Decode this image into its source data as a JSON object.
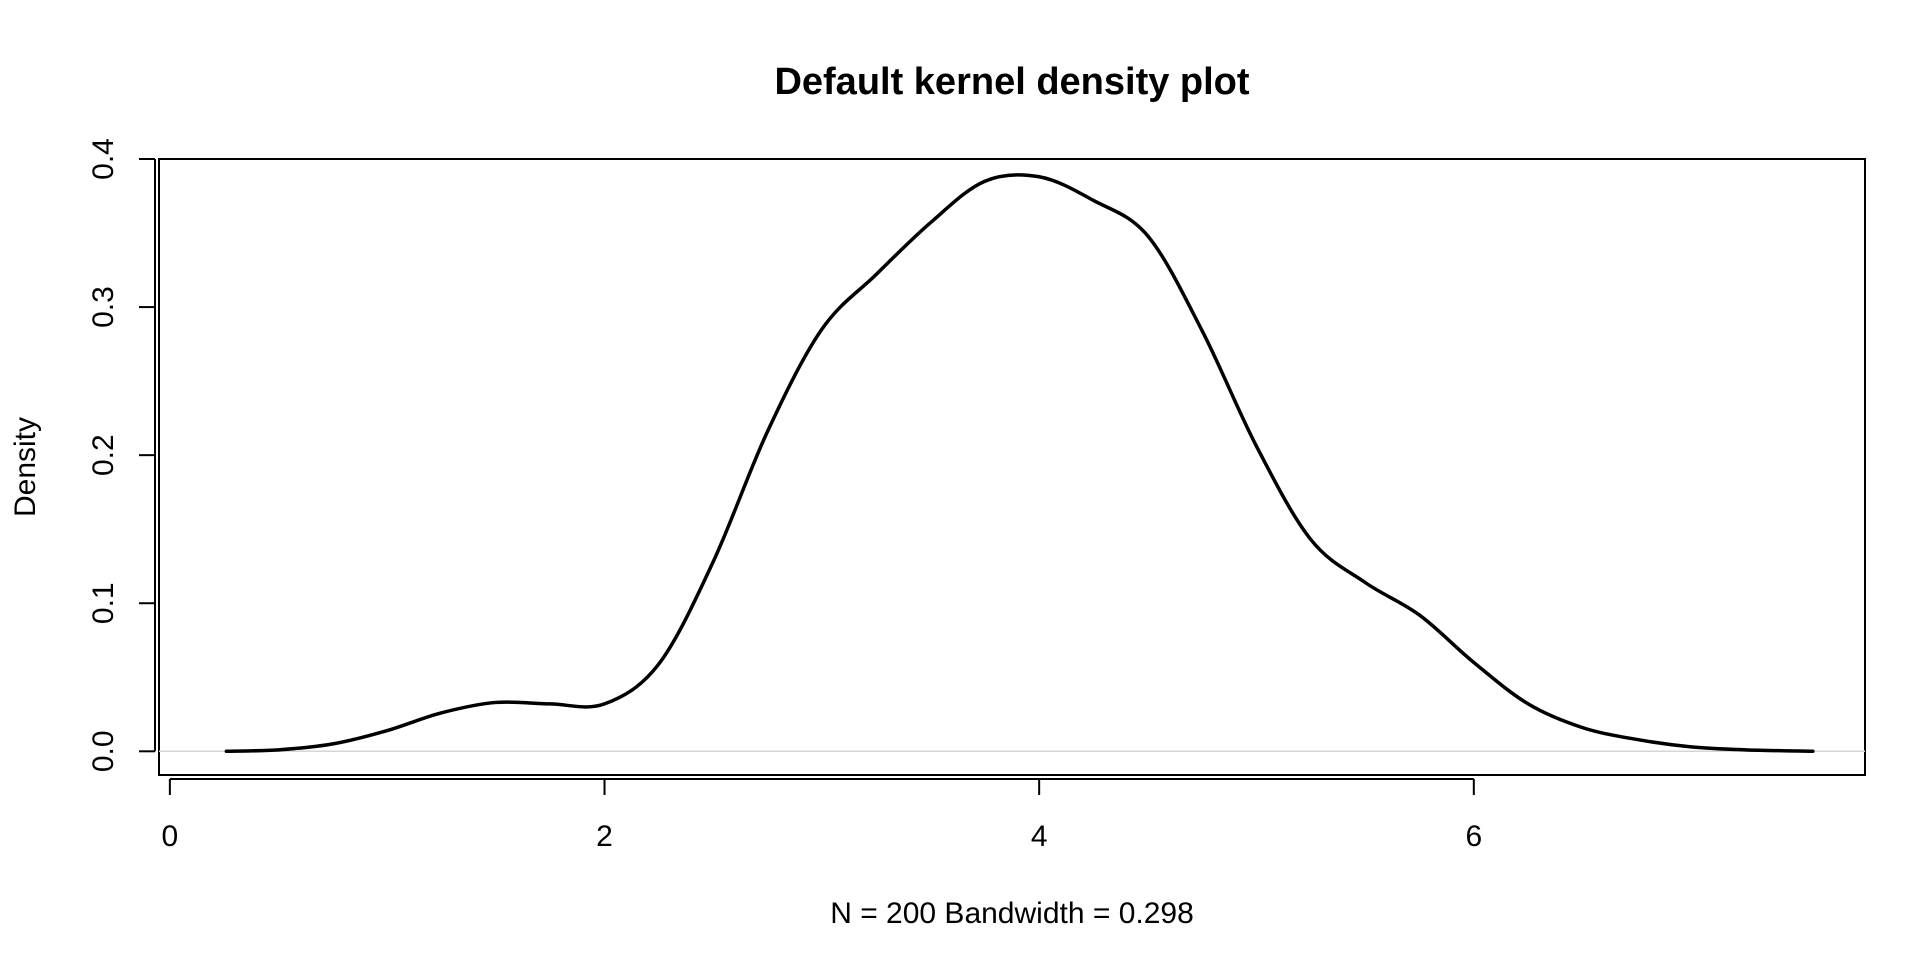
{
  "chart_data": {
    "type": "line",
    "title": "Default kernel density plot",
    "xlabel": "N = 200   Bandwidth = 0.298",
    "ylabel": "Density",
    "xlim": [
      -0.05,
      7.8
    ],
    "ylim": [
      -0.016,
      0.4
    ],
    "xticks": [
      0,
      2,
      4,
      6
    ],
    "yticks": [
      0.0,
      0.1,
      0.2,
      0.3,
      0.4
    ],
    "xtick_labels": [
      "0",
      "2",
      "4",
      "6"
    ],
    "ytick_labels": [
      "0.0",
      "0.1",
      "0.2",
      "0.3",
      "0.4"
    ],
    "grid": false,
    "zero_line": true,
    "line_color": "#000000",
    "series": [
      {
        "x": [
          0.26,
          0.5,
          0.75,
          1.0,
          1.25,
          1.5,
          1.75,
          2.0,
          2.25,
          2.5,
          2.75,
          3.0,
          3.25,
          3.5,
          3.75,
          4.0,
          4.25,
          4.5,
          4.75,
          5.0,
          5.25,
          5.5,
          5.75,
          6.0,
          6.25,
          6.5,
          6.75,
          7.0,
          7.25,
          7.56
        ],
        "y": [
          0.0,
          0.001,
          0.005,
          0.014,
          0.026,
          0.033,
          0.032,
          0.032,
          0.059,
          0.128,
          0.216,
          0.285,
          0.322,
          0.357,
          0.385,
          0.388,
          0.372,
          0.348,
          0.284,
          0.206,
          0.143,
          0.114,
          0.092,
          0.06,
          0.032,
          0.016,
          0.008,
          0.003,
          0.001,
          0.0
        ]
      }
    ]
  }
}
